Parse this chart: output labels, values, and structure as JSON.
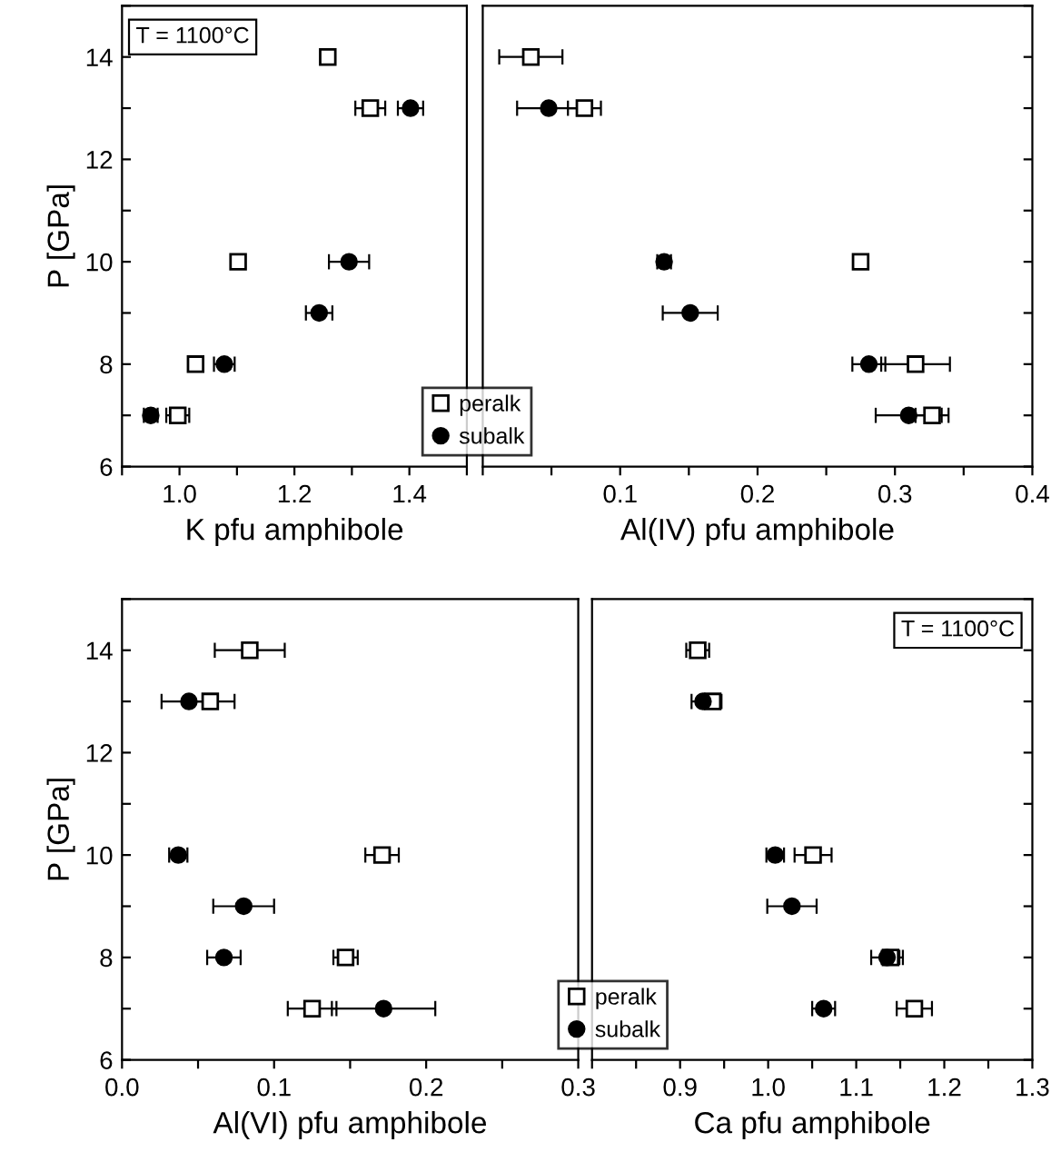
{
  "chart_data": [
    {
      "type": "scatter",
      "xlabel": "K pfu amphibole",
      "ylabel": "P [GPa]",
      "xlim": [
        0.9,
        1.5
      ],
      "ylim": [
        6,
        15
      ],
      "xticks": [
        {
          "value": 0.9,
          "label": null
        },
        {
          "value": 1,
          "label": "1.0"
        },
        {
          "value": 1.1,
          "label": null
        },
        1.2,
        {
          "value": 1.3,
          "label": null
        },
        1.4,
        {
          "value": 1.5,
          "label": null
        }
      ],
      "yticks": [
        6,
        {
          "value": 7,
          "label": null
        },
        8,
        {
          "value": 9,
          "label": null
        },
        10,
        {
          "value": 11,
          "label": null
        },
        12,
        {
          "value": 13,
          "label": null
        },
        14,
        {
          "value": 15,
          "label": null
        }
      ],
      "legend": "bottom right",
      "annotations": [
        "T = 1100°C"
      ],
      "series": [
        {
          "name": "peralk",
          "color": "#000000",
          "marker": "square",
          "x": [
            1.258,
            1.332,
            1.102,
            1.028,
            0.997
          ],
          "values": [
            14,
            13,
            10,
            8,
            7
          ],
          "xerrors": [
            0.005,
            0.026,
            0.005,
            0.006,
            0.02
          ]
        },
        {
          "name": "subalk",
          "color": "#000000",
          "marker": "circle",
          "x": [
            1.402,
            1.295,
            1.243,
            1.078,
            0.95
          ],
          "values": [
            13,
            10,
            9,
            8,
            7
          ],
          "xerrors": [
            0.022,
            0.035,
            0.023,
            0.018,
            0.012
          ]
        }
      ]
    },
    {
      "type": "scatter",
      "xlabel": "Al(IV) pfu amphibole",
      "xlim": [
        0,
        0.4
      ],
      "ylim": [
        6,
        15
      ],
      "tick_labels": "x",
      "xticks": [
        {
          "value": 0,
          "label": null
        },
        {
          "value": 0.05,
          "label": null
        },
        0.1,
        {
          "value": 0.15,
          "label": null
        },
        0.2,
        {
          "value": 0.25,
          "label": null
        },
        0.3,
        {
          "value": 0.35,
          "label": null
        },
        0.4
      ],
      "yticks": [
        {
          "value": 6,
          "label": null
        },
        {
          "value": 7,
          "label": null
        },
        {
          "value": 8,
          "label": null
        },
        {
          "value": 9,
          "label": null
        },
        {
          "value": 10,
          "label": null
        },
        {
          "value": 11,
          "label": null
        },
        {
          "value": 12,
          "label": null
        },
        {
          "value": 13,
          "label": null
        },
        {
          "value": 14,
          "label": null
        },
        {
          "value": 15,
          "label": null
        }
      ],
      "series": [
        {
          "color": "#000000",
          "marker": "square",
          "x": [
            0.035,
            0.074,
            0.275,
            0.315,
            0.327
          ],
          "values": [
            14,
            13,
            10,
            8,
            7
          ],
          "xerrors": [
            0.023,
            0.012,
            0.005,
            0.025,
            0.012
          ]
        },
        {
          "color": "#000000",
          "marker": "circle",
          "x": [
            0.048,
            0.132,
            0.151,
            0.281,
            0.31
          ],
          "values": [
            13,
            10,
            9,
            8,
            7
          ],
          "xerrors": [
            0.023,
            0.005,
            0.02,
            0.012,
            0.024
          ]
        }
      ]
    },
    {
      "type": "scatter",
      "xlabel": "Al(VI) pfu amphibole",
      "ylabel": "P [GPa]",
      "xlim": [
        0,
        0.3
      ],
      "ylim": [
        6,
        15
      ],
      "xticks": [
        {
          "value": 0,
          "label": "0.0"
        },
        {
          "value": 0.05,
          "label": null
        },
        0.1,
        {
          "value": 0.15,
          "label": null
        },
        0.2,
        {
          "value": 0.25,
          "label": null
        },
        0.3
      ],
      "yticks": [
        6,
        {
          "value": 7,
          "label": null
        },
        8,
        {
          "value": 9,
          "label": null
        },
        10,
        {
          "value": 11,
          "label": null
        },
        12,
        {
          "value": 13,
          "label": null
        },
        14,
        {
          "value": 15,
          "label": null
        }
      ],
      "legend": "bottom right",
      "series": [
        {
          "name": "peralk",
          "color": "#000000",
          "marker": "square",
          "x": [
            0.084,
            0.058,
            0.171,
            0.147,
            0.125
          ],
          "values": [
            14,
            13,
            10,
            8,
            7
          ],
          "xerrors": [
            0.023,
            0.016,
            0.011,
            0.008,
            0.016
          ]
        },
        {
          "name": "subalk",
          "color": "#000000",
          "marker": "circle",
          "x": [
            0.044,
            0.037,
            0.08,
            0.067,
            0.172
          ],
          "values": [
            13,
            10,
            9,
            8,
            7
          ],
          "xerrors": [
            0.018,
            0.006,
            0.02,
            0.011,
            0.034
          ]
        }
      ]
    },
    {
      "type": "scatter",
      "xlabel": "Ca pfu amphibole",
      "xlim": [
        0.8,
        1.3
      ],
      "ylim": [
        6,
        15
      ],
      "tick_labels": "x",
      "xticks": [
        {
          "value": 0.8,
          "label": null
        },
        {
          "value": 0.85,
          "label": null
        },
        0.9,
        {
          "value": 0.95,
          "label": null
        },
        {
          "value": 1,
          "label": "1.0"
        },
        {
          "value": 1.05,
          "label": null
        },
        1.1,
        {
          "value": 1.15,
          "label": null
        },
        1.2,
        {
          "value": 1.25,
          "label": null
        },
        1.3
      ],
      "yticks": [
        {
          "value": 6,
          "label": null
        },
        {
          "value": 7,
          "label": null
        },
        {
          "value": 8,
          "label": null
        },
        {
          "value": 9,
          "label": null
        },
        {
          "value": 10,
          "label": null
        },
        {
          "value": 11,
          "label": null
        },
        {
          "value": 12,
          "label": null
        },
        {
          "value": 13,
          "label": null
        },
        {
          "value": 14,
          "label": null
        },
        {
          "value": 15,
          "label": null
        }
      ],
      "annotations": [
        "T = 1100°C"
      ],
      "series": [
        {
          "color": "#000000",
          "marker": "square",
          "x": [
            0.92,
            0.937,
            1.051,
            1.139,
            1.166
          ],
          "values": [
            14,
            13,
            10,
            8,
            7
          ],
          "xerrors": [
            0.013,
            0.01,
            0.021,
            0.01,
            0.02
          ]
        },
        {
          "color": "#000000",
          "marker": "circle",
          "x": [
            0.926,
            1.008,
            1.027,
            1.135,
            1.063
          ],
          "values": [
            13,
            10,
            9,
            8,
            7
          ],
          "xerrors": [
            0.013,
            0.01,
            0.028,
            0.018,
            0.013
          ]
        }
      ]
    }
  ]
}
